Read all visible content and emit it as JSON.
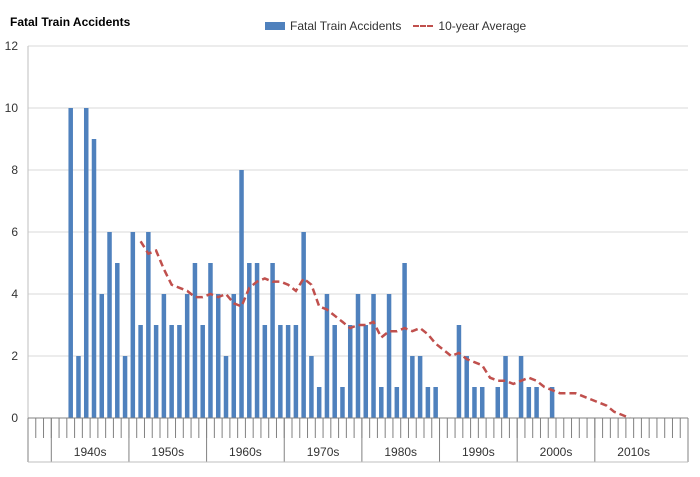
{
  "chart_data": {
    "type": "bar",
    "title": "Fatal Train Accidents",
    "legend": {
      "placement": "top",
      "entries": [
        "Fatal Train Accidents",
        "10-year Average"
      ]
    },
    "colors": {
      "bars": "#4f81bd",
      "average": "#c0504d",
      "grid": "#d9d9d9",
      "axis": "#808080"
    },
    "ylim": [
      0,
      12
    ],
    "yticks": [
      0,
      2,
      4,
      6,
      8,
      10,
      12
    ],
    "xlim": [
      1935,
      2020
    ],
    "decades": [
      "1940s",
      "1950s",
      "1960s",
      "1970s",
      "1980s",
      "1990s",
      "2000s",
      "2010s"
    ],
    "series": [
      {
        "name": "Fatal Train Accidents",
        "type": "bar",
        "points": [
          [
            1940,
            10
          ],
          [
            1941,
            2
          ],
          [
            1942,
            10
          ],
          [
            1943,
            9
          ],
          [
            1944,
            4
          ],
          [
            1945,
            6
          ],
          [
            1946,
            5
          ],
          [
            1947,
            2
          ],
          [
            1948,
            6
          ],
          [
            1949,
            3
          ],
          [
            1950,
            6
          ],
          [
            1951,
            3
          ],
          [
            1952,
            4
          ],
          [
            1953,
            3
          ],
          [
            1954,
            3
          ],
          [
            1955,
            4
          ],
          [
            1956,
            5
          ],
          [
            1957,
            3
          ],
          [
            1958,
            5
          ],
          [
            1959,
            4
          ],
          [
            1960,
            2
          ],
          [
            1961,
            4
          ],
          [
            1962,
            8
          ],
          [
            1963,
            5
          ],
          [
            1964,
            5
          ],
          [
            1965,
            3
          ],
          [
            1966,
            5
          ],
          [
            1967,
            3
          ],
          [
            1968,
            3
          ],
          [
            1969,
            3
          ],
          [
            1970,
            6
          ],
          [
            1971,
            2
          ],
          [
            1972,
            1
          ],
          [
            1973,
            4
          ],
          [
            1974,
            3
          ],
          [
            1975,
            1
          ],
          [
            1976,
            3
          ],
          [
            1977,
            4
          ],
          [
            1978,
            3
          ],
          [
            1979,
            4
          ],
          [
            1980,
            1
          ],
          [
            1981,
            4
          ],
          [
            1982,
            1
          ],
          [
            1983,
            5
          ],
          [
            1984,
            2
          ],
          [
            1985,
            2
          ],
          [
            1986,
            1
          ],
          [
            1987,
            1
          ],
          [
            1990,
            3
          ],
          [
            1991,
            2
          ],
          [
            1992,
            1
          ],
          [
            1993,
            1
          ],
          [
            1995,
            1
          ],
          [
            1996,
            2
          ],
          [
            1998,
            2
          ],
          [
            1999,
            1
          ],
          [
            2000,
            1
          ],
          [
            2002,
            1
          ]
        ]
      },
      {
        "name": "10-year Average",
        "type": "line",
        "points": [
          [
            1949,
            5.7
          ],
          [
            1950,
            5.3
          ],
          [
            1951,
            5.4
          ],
          [
            1952,
            4.8
          ],
          [
            1953,
            4.3
          ],
          [
            1954,
            4.2
          ],
          [
            1955,
            4.1
          ],
          [
            1956,
            3.9
          ],
          [
            1957,
            3.9
          ],
          [
            1958,
            4.0
          ],
          [
            1959,
            3.9
          ],
          [
            1960,
            4.0
          ],
          [
            1961,
            3.7
          ],
          [
            1962,
            3.6
          ],
          [
            1963,
            4.2
          ],
          [
            1964,
            4.4
          ],
          [
            1965,
            4.5
          ],
          [
            1966,
            4.4
          ],
          [
            1967,
            4.4
          ],
          [
            1968,
            4.3
          ],
          [
            1969,
            4.1
          ],
          [
            1970,
            4.5
          ],
          [
            1971,
            4.3
          ],
          [
            1972,
            3.6
          ],
          [
            1973,
            3.5
          ],
          [
            1974,
            3.3
          ],
          [
            1975,
            3.1
          ],
          [
            1976,
            2.9
          ],
          [
            1977,
            3.0
          ],
          [
            1978,
            3.0
          ],
          [
            1979,
            3.1
          ],
          [
            1980,
            2.6
          ],
          [
            1981,
            2.8
          ],
          [
            1982,
            2.8
          ],
          [
            1983,
            2.9
          ],
          [
            1984,
            2.8
          ],
          [
            1985,
            2.9
          ],
          [
            1986,
            2.7
          ],
          [
            1987,
            2.4
          ],
          [
            1988,
            2.2
          ],
          [
            1989,
            2.0
          ],
          [
            1990,
            2.1
          ],
          [
            1991,
            1.9
          ],
          [
            1992,
            1.8
          ],
          [
            1993,
            1.7
          ],
          [
            1994,
            1.3
          ],
          [
            1995,
            1.2
          ],
          [
            1996,
            1.2
          ],
          [
            1997,
            1.1
          ],
          [
            1998,
            1.2
          ],
          [
            1999,
            1.3
          ],
          [
            2000,
            1.2
          ],
          [
            2001,
            1.0
          ],
          [
            2002,
            0.9
          ],
          [
            2003,
            0.8
          ],
          [
            2004,
            0.8
          ],
          [
            2005,
            0.8
          ],
          [
            2006,
            0.7
          ],
          [
            2007,
            0.6
          ],
          [
            2008,
            0.5
          ],
          [
            2009,
            0.4
          ],
          [
            2010,
            0.2
          ],
          [
            2011,
            0.1
          ],
          [
            2012,
            0.0
          ]
        ]
      }
    ]
  }
}
